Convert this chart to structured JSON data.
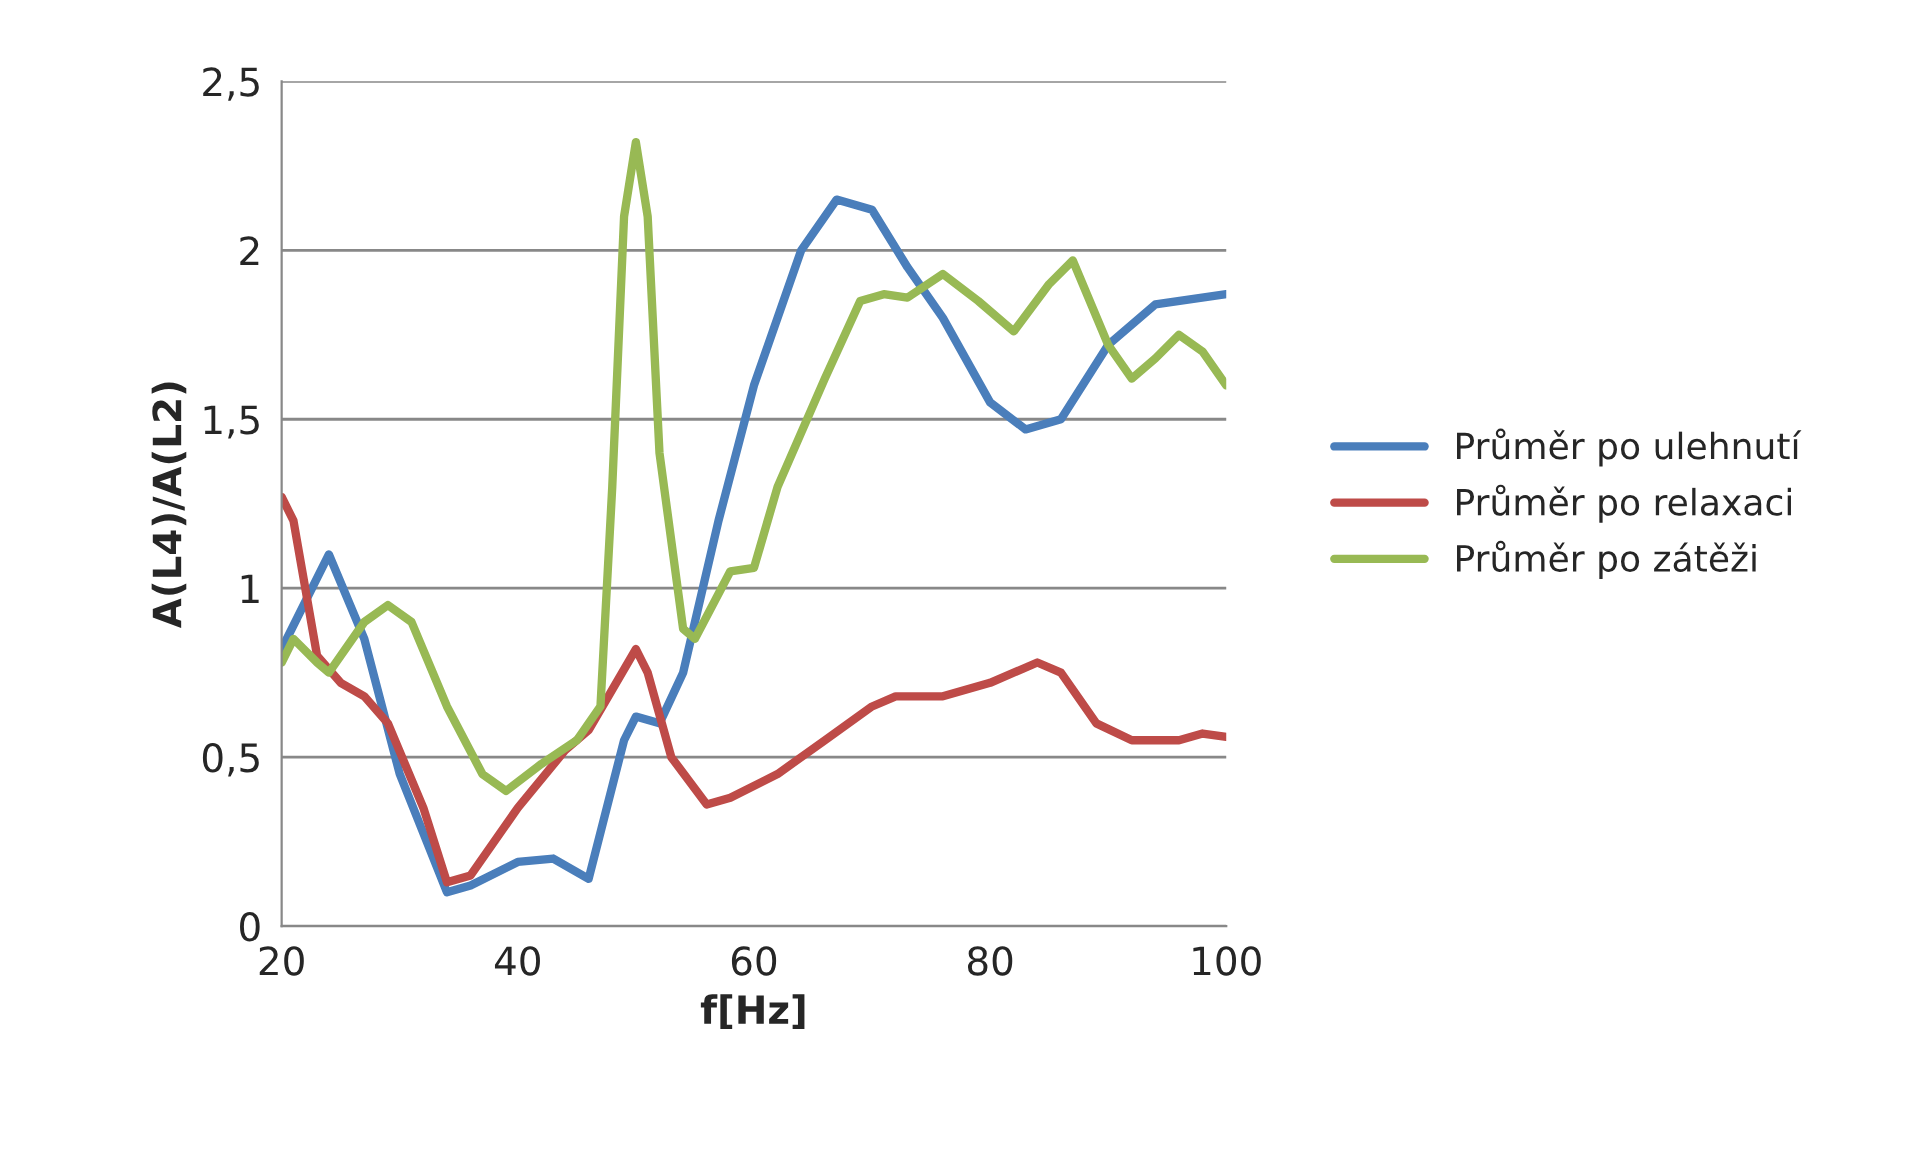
{
  "chart_data": {
    "type": "line",
    "xlabel": "f[Hz]",
    "ylabel": "A(L4)/A(L2)",
    "xlim": [
      20,
      100
    ],
    "xticks": [
      20,
      40,
      60,
      80,
      100
    ],
    "ylim": [
      0,
      2.5
    ],
    "yticks": [
      {
        "value": 0,
        "label": "0"
      },
      {
        "value": 0.5,
        "label": "0,5"
      },
      {
        "value": 1,
        "label": "1"
      },
      {
        "value": 1.5,
        "label": "1,5"
      },
      {
        "value": 2,
        "label": "2"
      },
      {
        "value": 2.5,
        "label": "2,5"
      }
    ],
    "grid": "y",
    "legend": "right",
    "marker": "none",
    "line_style": "solid",
    "series": [
      {
        "name": "Průměr po ulehnutí",
        "color": "#4a7ebb",
        "x": [
          20,
          24,
          27,
          30,
          34,
          36,
          40,
          43,
          46,
          49,
          50,
          52,
          54,
          57,
          60,
          64,
          67,
          70,
          73,
          76,
          80,
          83,
          86,
          90,
          94,
          100
        ],
        "values": [
          0.82,
          1.1,
          0.85,
          0.45,
          0.1,
          0.12,
          0.19,
          0.2,
          0.14,
          0.55,
          0.62,
          0.6,
          0.75,
          1.2,
          1.6,
          2.0,
          2.15,
          2.12,
          1.95,
          1.8,
          1.55,
          1.47,
          1.5,
          1.72,
          1.84,
          1.87
        ]
      },
      {
        "name": "Průměr po relaxaci",
        "color": "#be4b48",
        "x": [
          20,
          21,
          23,
          25,
          27,
          29,
          32,
          34,
          36,
          40,
          44,
          46,
          48,
          50,
          51,
          53,
          56,
          58,
          62,
          66,
          70,
          72,
          76,
          80,
          84,
          86,
          89,
          92,
          96,
          98,
          100
        ],
        "values": [
          1.27,
          1.2,
          0.8,
          0.72,
          0.68,
          0.6,
          0.35,
          0.13,
          0.15,
          0.35,
          0.52,
          0.58,
          0.7,
          0.82,
          0.75,
          0.5,
          0.36,
          0.38,
          0.45,
          0.55,
          0.65,
          0.68,
          0.68,
          0.72,
          0.78,
          0.75,
          0.6,
          0.55,
          0.55,
          0.57,
          0.56
        ]
      },
      {
        "name": "Průměr po zátěži",
        "color": "#98b954",
        "x": [
          20,
          21,
          23,
          24,
          27,
          29,
          31,
          34,
          37,
          39,
          42,
          45,
          47,
          48,
          49,
          50,
          51,
          52,
          54,
          55,
          58,
          60,
          62,
          66,
          69,
          71,
          73,
          76,
          79,
          82,
          85,
          87,
          90,
          92,
          94,
          96,
          98,
          100
        ],
        "values": [
          0.78,
          0.85,
          0.78,
          0.75,
          0.9,
          0.95,
          0.9,
          0.65,
          0.45,
          0.4,
          0.48,
          0.55,
          0.65,
          1.3,
          2.1,
          2.32,
          2.1,
          1.4,
          0.88,
          0.85,
          1.05,
          1.06,
          1.3,
          1.62,
          1.85,
          1.87,
          1.86,
          1.93,
          1.85,
          1.76,
          1.9,
          1.97,
          1.72,
          1.62,
          1.68,
          1.75,
          1.7,
          1.6
        ]
      }
    ]
  }
}
